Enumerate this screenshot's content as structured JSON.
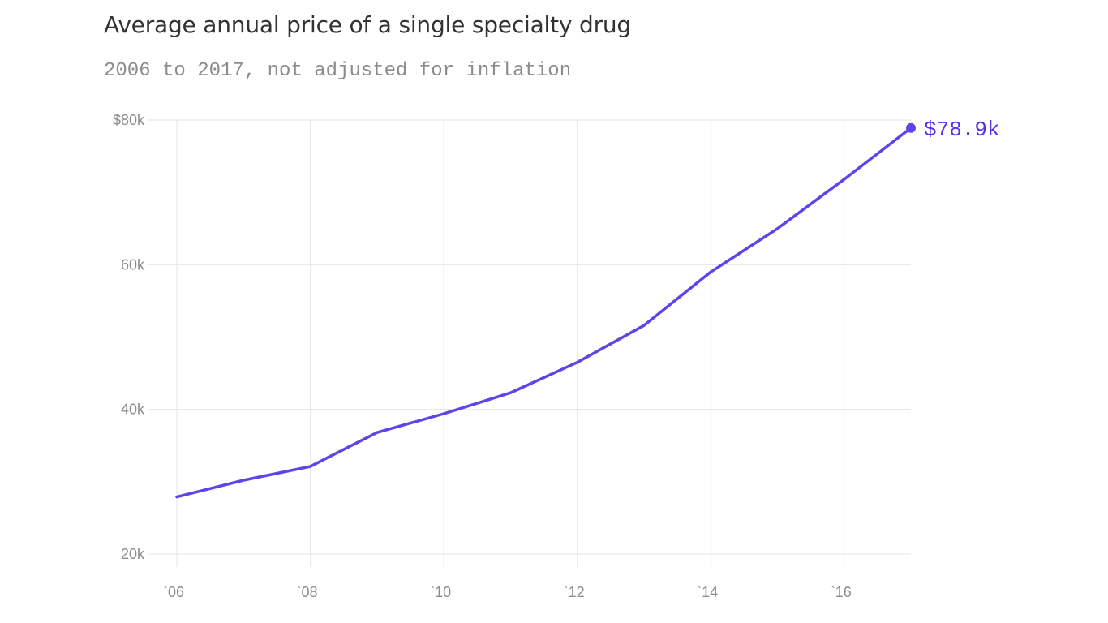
{
  "chart_data": {
    "type": "line",
    "title": "Average annual price of a single specialty drug",
    "subtitle": "2006 to 2017, not adjusted for inflation",
    "x": [
      2006,
      2007,
      2008,
      2009,
      2010,
      2011,
      2012,
      2013,
      2014,
      2015,
      2016,
      2017
    ],
    "series": [
      {
        "values": [
          27.9,
          30.2,
          32.1,
          36.8,
          39.4,
          42.3,
          46.5,
          51.6,
          59.0,
          65.0,
          71.8,
          78.9
        ]
      }
    ],
    "xlim": [
      2006,
      2017
    ],
    "ylim": [
      20,
      80
    ],
    "xticks": [
      2006,
      2008,
      2010,
      2012,
      2014,
      2016
    ],
    "xtick_labels": [
      "`06",
      "`08",
      "`10",
      "`12",
      "`14",
      "`16"
    ],
    "yticks": [
      20,
      40,
      60,
      80
    ],
    "ytick_labels": [
      "20k",
      "40k",
      "60k",
      "$80k"
    ],
    "end_label": "$78.9k",
    "grid": true,
    "line_color": "#6142eb",
    "end_label_color": "#5a2ee8",
    "grid_color": "#e6e6e6",
    "tick_color": "#8c8c8c"
  }
}
